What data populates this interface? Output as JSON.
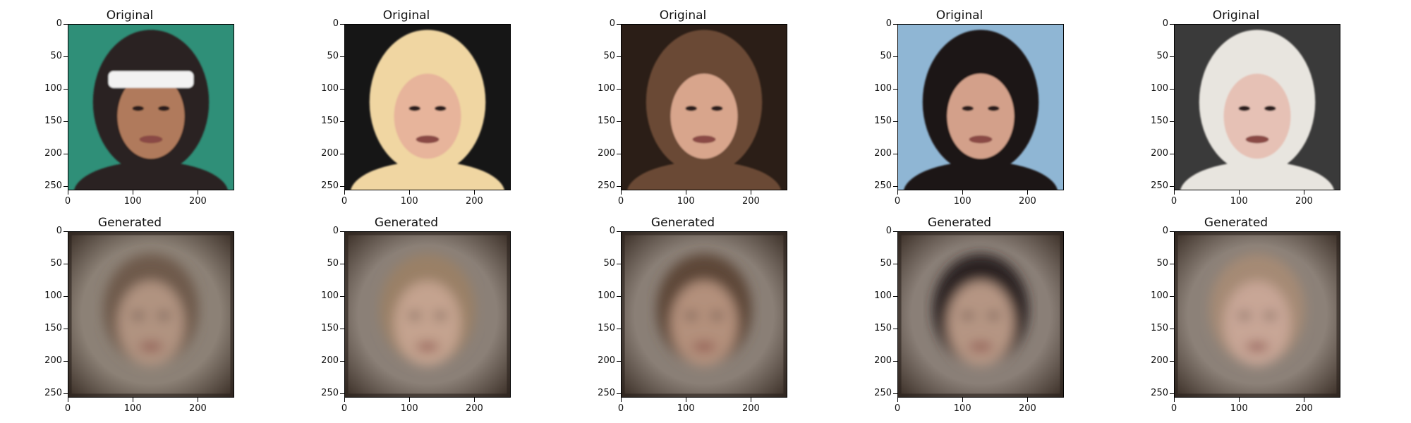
{
  "figure": {
    "panels": [
      {
        "title": "Original",
        "kind": "original",
        "skin": "#b07a5b",
        "hair": "#2a2420",
        "bg": "#2f8f78",
        "accent": "#f2f2f2"
      },
      {
        "title": "Original",
        "kind": "original",
        "skin": "#e7b49b",
        "hair": "#f0d6a2",
        "bg": "#161616",
        "accent": "#f7f7f7"
      },
      {
        "title": "Original",
        "kind": "original",
        "skin": "#d8a58c",
        "hair": "#6a4a34",
        "bg": "#2b1e17",
        "accent": "#d9b9a3"
      },
      {
        "title": "Original",
        "kind": "original",
        "skin": "#d3a08a",
        "hair": "#1b1615",
        "bg": "#8fb6d4",
        "accent": "#d6e9f6"
      },
      {
        "title": "Original",
        "kind": "original",
        "skin": "#e6c1b5",
        "hair": "#e8e5df",
        "bg": "#3a3a3a",
        "accent": "#5a86c8"
      },
      {
        "title": "Generated",
        "kind": "generated",
        "skin": "#b09380",
        "hair": "#6e5a4c",
        "bg": "#8c8176",
        "accent": "#3a2e26"
      },
      {
        "title": "Generated",
        "kind": "generated",
        "skin": "#c4a38f",
        "hair": "#9a8066",
        "bg": "#8b8077",
        "accent": "#3a2e26"
      },
      {
        "title": "Generated",
        "kind": "generated",
        "skin": "#b3907c",
        "hair": "#5d4637",
        "bg": "#8a7f76",
        "accent": "#3a2e26"
      },
      {
        "title": "Generated",
        "kind": "generated",
        "skin": "#b59583",
        "hair": "#2a2220",
        "bg": "#8a7f77",
        "accent": "#3a2e26"
      },
      {
        "title": "Generated",
        "kind": "generated",
        "skin": "#c8a696",
        "hair": "#a58a74",
        "bg": "#8c8178",
        "accent": "#3a2e26"
      }
    ],
    "axes": {
      "yticks": [
        "0",
        "50",
        "100",
        "150",
        "200",
        "250"
      ],
      "xticks": [
        "0",
        "100",
        "200"
      ],
      "xlim": [
        0,
        256
      ],
      "ylim": [
        256,
        0
      ]
    }
  }
}
